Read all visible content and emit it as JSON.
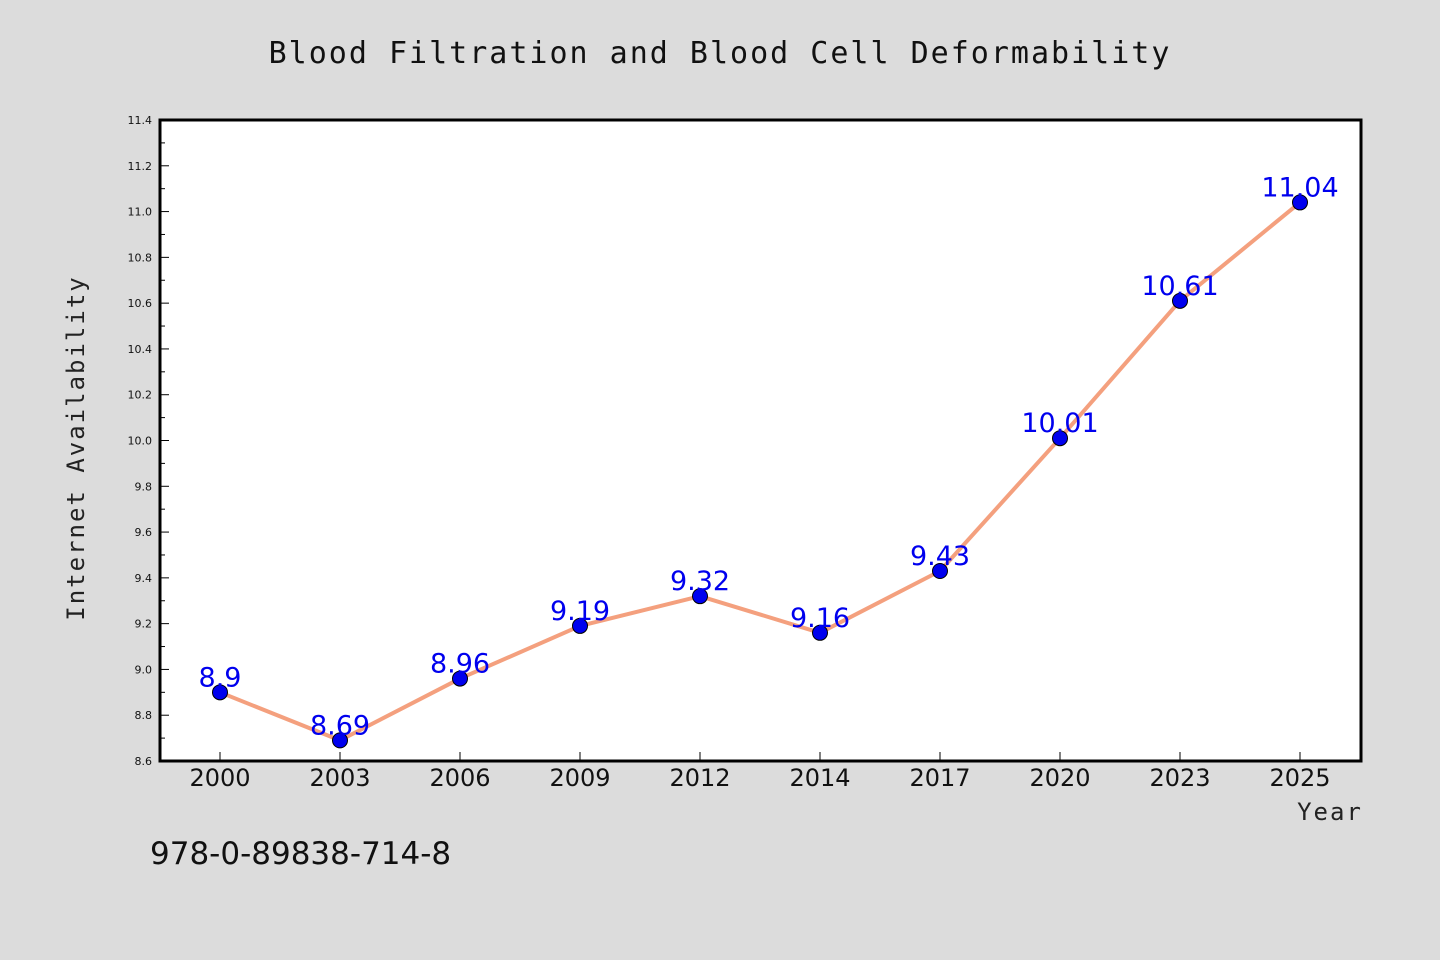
{
  "chart_data": {
    "type": "line",
    "title": "Blood Filtration and Blood Cell Deformability",
    "xlabel": "Year",
    "ylabel": "Internet Availability",
    "categories": [
      "2000",
      "2003",
      "2006",
      "2009",
      "2012",
      "2014",
      "2017",
      "2020",
      "2023",
      "2025"
    ],
    "series": [
      {
        "values": [
          8.9,
          8.69,
          8.96,
          9.19,
          9.32,
          9.16,
          9.43,
          10.01,
          10.61,
          11.04
        ],
        "data_labels": [
          "8.9",
          "8.69",
          "8.96",
          "9.19",
          "9.32",
          "9.16",
          "9.43",
          "10.01",
          "10.61",
          "11.04"
        ]
      }
    ],
    "ylim": [
      8.6,
      11.4
    ],
    "yticks": [
      "8.6",
      "8.8",
      "9.0",
      "9.2",
      "9.4",
      "9.6",
      "9.8",
      "10.0",
      "10.2",
      "10.4",
      "10.6",
      "10.8",
      "11.0",
      "11.2",
      "11.4"
    ],
    "grid": false,
    "legend": "none",
    "colors": {
      "line": "#f4a07e",
      "marker": "#0000ee",
      "label": "#0000ee",
      "background": "#dcdcdc",
      "plot_background": "#ffffff"
    }
  },
  "footer": {
    "text": "978-0-89838-714-8"
  }
}
